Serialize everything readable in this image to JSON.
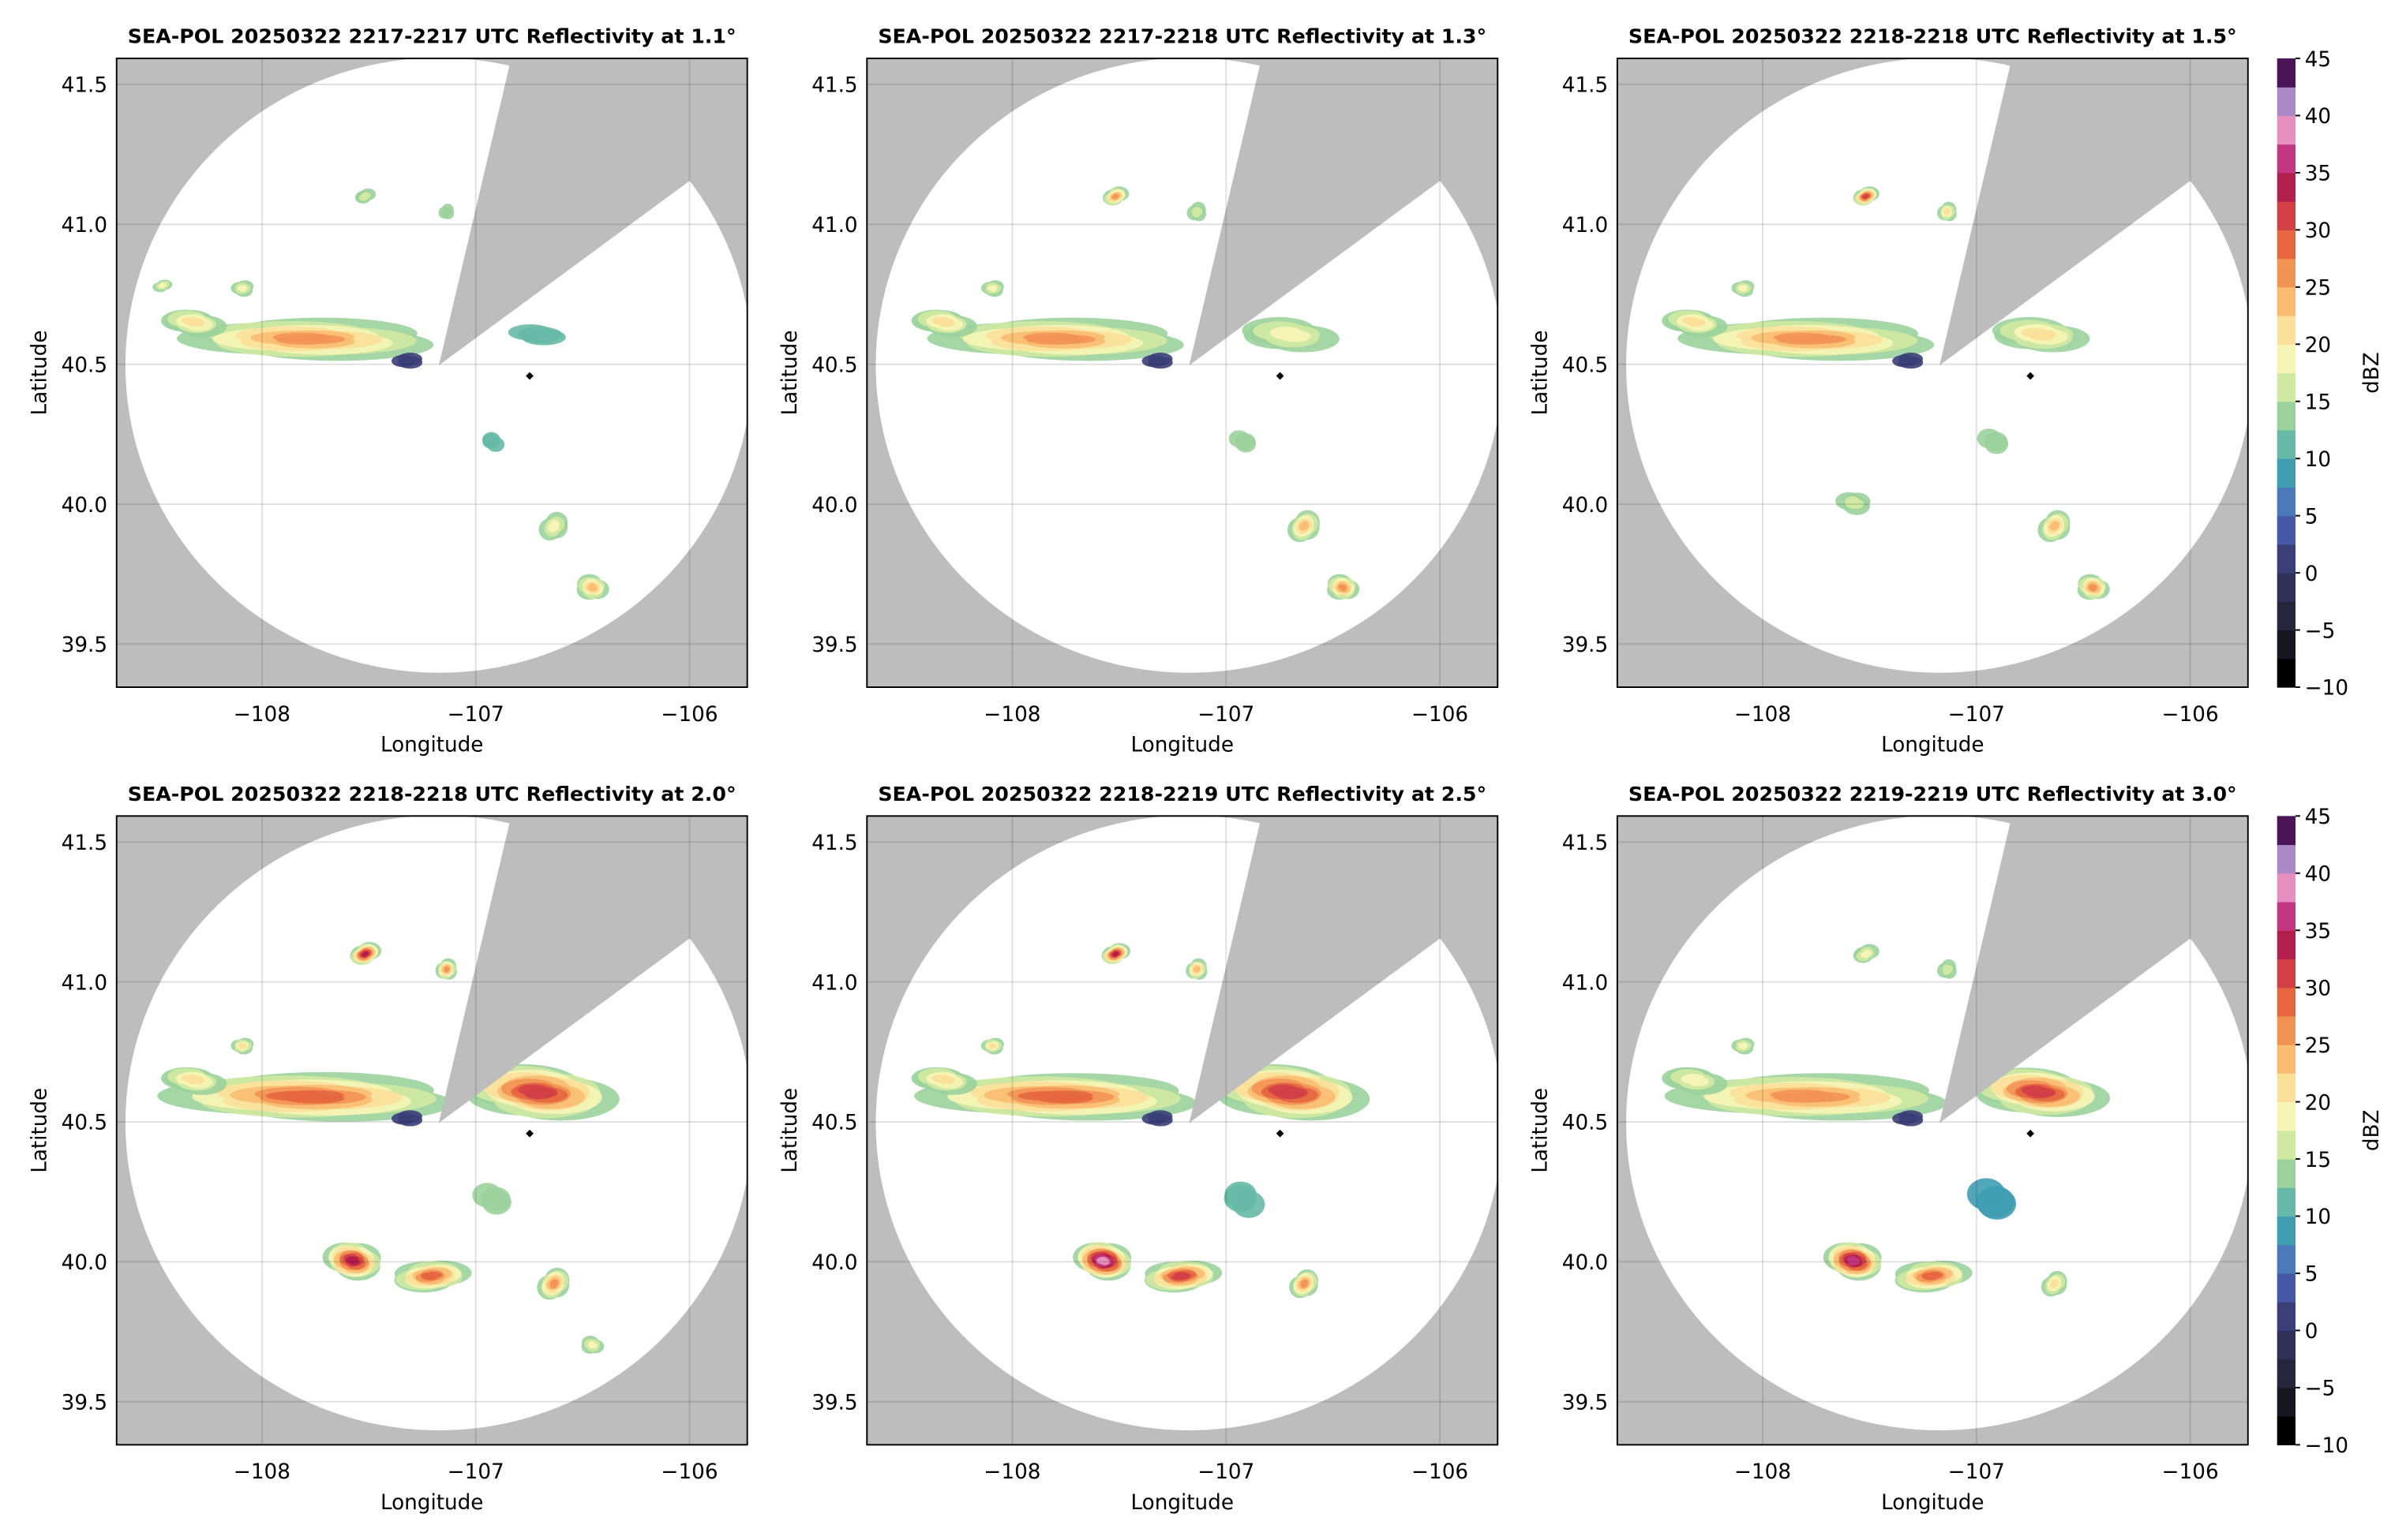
{
  "chart_data": [
    {
      "type": "ppi",
      "title": "SEA-POL 20250322 2217-2217 UTC Reflectivity at 1.1°",
      "xlabel": "Longitude",
      "ylabel": "Latitude",
      "xlim": [
        -108.68,
        -105.73
      ],
      "ylim": [
        39.346,
        41.593
      ],
      "xticks": [
        {
          "value": -108,
          "label": "−108"
        },
        {
          "value": -107,
          "label": "−107"
        },
        {
          "value": -106,
          "label": "−106"
        }
      ],
      "yticks": [
        39.5,
        {
          "value": 40,
          "label": "40.0"
        },
        40.5,
        {
          "value": 41,
          "label": "41.0"
        },
        41.5
      ],
      "grid": true
    },
    {
      "type": "ppi",
      "title": "SEA-POL 20250322 2217-2218 UTC Reflectivity at 1.3°",
      "xlabel": "Longitude",
      "ylabel": "Latitude",
      "xlim": [
        -108.68,
        -105.73
      ],
      "ylim": [
        39.346,
        41.593
      ],
      "xticks": [
        {
          "value": -108,
          "label": "−108"
        },
        {
          "value": -107,
          "label": "−107"
        },
        {
          "value": -106,
          "label": "−106"
        }
      ],
      "yticks": [
        39.5,
        {
          "value": 40,
          "label": "40.0"
        },
        40.5,
        {
          "value": 41,
          "label": "41.0"
        },
        41.5
      ],
      "grid": true
    },
    {
      "type": "ppi",
      "title": "SEA-POL 20250322 2218-2218 UTC Reflectivity at 1.5°",
      "xlabel": "Longitude",
      "ylabel": "Latitude",
      "xlim": [
        -108.68,
        -105.73
      ],
      "ylim": [
        39.346,
        41.593
      ],
      "xticks": [
        {
          "value": -108,
          "label": "−108"
        },
        {
          "value": -107,
          "label": "−107"
        },
        {
          "value": -106,
          "label": "−106"
        }
      ],
      "yticks": [
        39.5,
        {
          "value": 40,
          "label": "40.0"
        },
        40.5,
        {
          "value": 41,
          "label": "41.0"
        },
        41.5
      ],
      "grid": true,
      "colorbar": {
        "label": "dBZ",
        "lim": [
          -10,
          45
        ],
        "ticks": [
          {
            "value": -10,
            "label": "−10"
          },
          {
            "value": -5,
            "label": "−5"
          },
          0,
          5,
          10,
          15,
          20,
          25,
          30,
          35,
          40,
          45
        ],
        "colors": [
          "#000000",
          "#16161f",
          "#25253b",
          "#30305a",
          "#3b3f78",
          "#4658a6",
          "#4b79b9",
          "#3f9db2",
          "#66b9a6",
          "#9bd19c",
          "#d0e9a2",
          "#f6f5b6",
          "#fbe09a",
          "#f9bc72",
          "#f29356",
          "#e6663f",
          "#d33f47",
          "#b41e4c",
          "#c23780",
          "#e790c0",
          "#a98ac6",
          "#4a1457"
        ]
      }
    },
    {
      "type": "ppi",
      "title": "SEA-POL 20250322 2218-2218 UTC Reflectivity at 2.0°",
      "xlabel": "Longitude",
      "ylabel": "Latitude",
      "xlim": [
        -108.68,
        -105.73
      ],
      "ylim": [
        39.346,
        41.593
      ],
      "xticks": [
        {
          "value": -108,
          "label": "−108"
        },
        {
          "value": -107,
          "label": "−107"
        },
        {
          "value": -106,
          "label": "−106"
        }
      ],
      "yticks": [
        39.5,
        {
          "value": 40,
          "label": "40.0"
        },
        40.5,
        {
          "value": 41,
          "label": "41.0"
        },
        41.5
      ],
      "grid": true
    },
    {
      "type": "ppi",
      "title": "SEA-POL 20250322 2218-2219 UTC Reflectivity at 2.5°",
      "xlabel": "Longitude",
      "ylabel": "Latitude",
      "xlim": [
        -108.68,
        -105.73
      ],
      "ylim": [
        39.346,
        41.593
      ],
      "xticks": [
        {
          "value": -108,
          "label": "−108"
        },
        {
          "value": -107,
          "label": "−107"
        },
        {
          "value": -106,
          "label": "−106"
        }
      ],
      "yticks": [
        39.5,
        {
          "value": 40,
          "label": "40.0"
        },
        40.5,
        {
          "value": 41,
          "label": "41.0"
        },
        41.5
      ],
      "grid": true
    },
    {
      "type": "ppi",
      "title": "SEA-POL 20250322 2219-2219 UTC Reflectivity at 3.0°",
      "xlabel": "Longitude",
      "ylabel": "Latitude",
      "xlim": [
        -108.68,
        -105.73
      ],
      "ylim": [
        39.346,
        41.593
      ],
      "xticks": [
        {
          "value": -108,
          "label": "−108"
        },
        {
          "value": -107,
          "label": "−107"
        },
        {
          "value": -106,
          "label": "−106"
        }
      ],
      "yticks": [
        39.5,
        {
          "value": 40,
          "label": "40.0"
        },
        40.5,
        {
          "value": 41,
          "label": "41.0"
        },
        41.5
      ],
      "grid": true,
      "colorbar": {
        "label": "dBZ",
        "lim": [
          -10,
          45
        ],
        "ticks": [
          {
            "value": -10,
            "label": "−10"
          },
          {
            "value": -5,
            "label": "−5"
          },
          0,
          5,
          10,
          15,
          20,
          25,
          30,
          35,
          40,
          45
        ],
        "colors": [
          "#000000",
          "#16161f",
          "#25253b",
          "#30305a",
          "#3b3f78",
          "#4658a6",
          "#4b79b9",
          "#3f9db2",
          "#66b9a6",
          "#9bd19c",
          "#d0e9a2",
          "#f6f5b6",
          "#fbe09a",
          "#f9bc72",
          "#f29356",
          "#e6663f",
          "#d33f47",
          "#b41e4c",
          "#c23780",
          "#e790c0",
          "#a98ac6",
          "#4a1457"
        ]
      }
    }
  ]
}
